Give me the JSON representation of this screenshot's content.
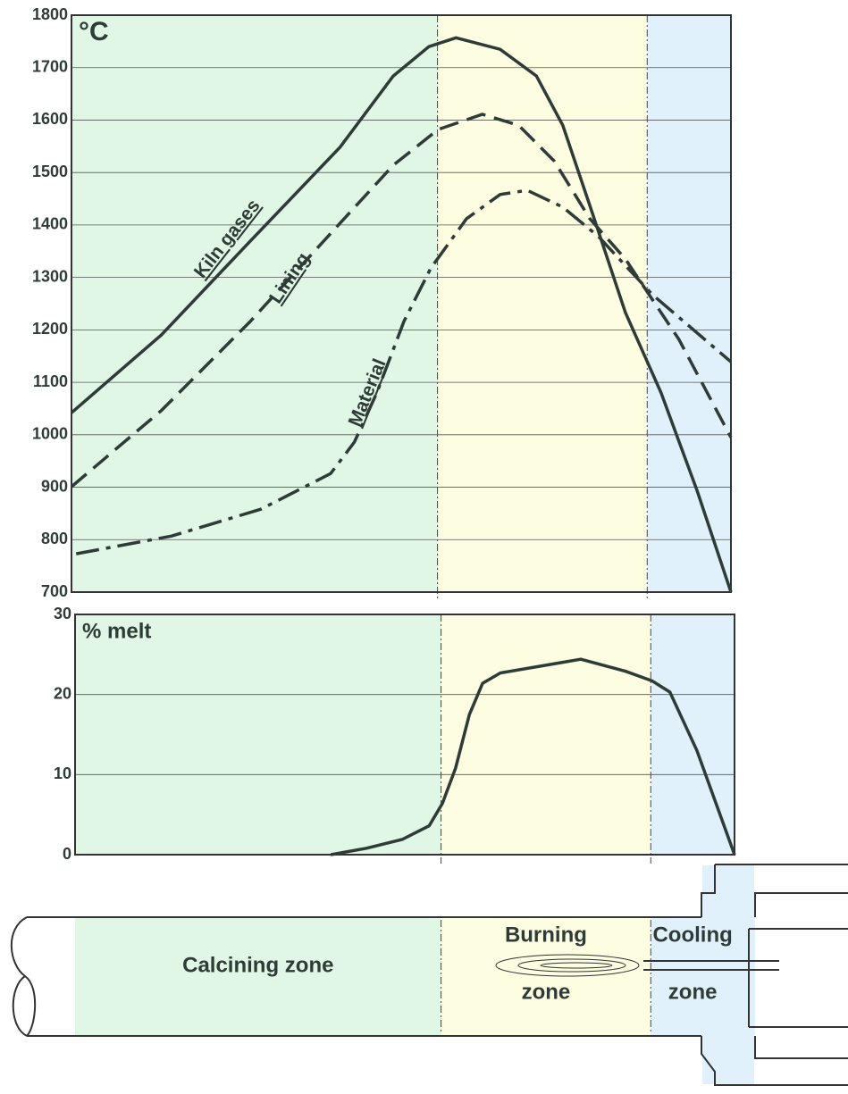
{
  "zones": [
    {
      "label": [
        "Calcining zone"
      ],
      "start": 0,
      "end": 55.5,
      "color": "#e0f7e6"
    },
    {
      "label": [
        "Burning",
        "zone"
      ],
      "start": 55.5,
      "end": 87.3,
      "color": "#fdfde2"
    },
    {
      "label": [
        "Cooling",
        "zone"
      ],
      "start": 87.3,
      "end": 100,
      "color": "#e1f1fb"
    }
  ],
  "chart_data": [
    {
      "type": "line",
      "axis_label": "°C",
      "xlim": [
        0,
        100
      ],
      "ylim": [
        700,
        1800
      ],
      "yticks": [
        700,
        800,
        900,
        1000,
        1100,
        1200,
        1300,
        1400,
        1500,
        1600,
        1700,
        1800
      ],
      "grid": true,
      "series": [
        {
          "name": "Kiln gases",
          "color": "#2f3b36",
          "linestyle": "solid",
          "x": [
            0,
            13.6,
            27.1,
            40.7,
            48.8,
            54.2,
            58.3,
            65.0,
            70.5,
            74.5,
            78.6,
            84.0,
            89.4,
            94.9,
            100
          ],
          "values": [
            1042,
            1190,
            1369,
            1548,
            1684,
            1740,
            1757,
            1735,
            1684,
            1590,
            1437,
            1233,
            1080,
            892,
            700
          ]
        },
        {
          "name": "Lining",
          "color": "#2f3b36",
          "linestyle": "dashed",
          "x": [
            0,
            13.6,
            27.1,
            40.7,
            48.8,
            55.6,
            62.3,
            67.8,
            73.2,
            78.6,
            84.0,
            92.1,
            100
          ],
          "values": [
            901,
            1046,
            1216,
            1403,
            1514,
            1582,
            1611,
            1590,
            1522,
            1412,
            1335,
            1182,
            995
          ]
        },
        {
          "name": "Material",
          "color": "#2f3b36",
          "linestyle": "dashdot",
          "x": [
            0.7,
            15.2,
            28.7,
            39.3,
            42.9,
            46.3,
            50.4,
            54.5,
            59.9,
            65.0,
            69.1,
            74.5,
            79.9,
            88.1,
            100
          ],
          "values": [
            773,
            807,
            858,
            926,
            986,
            1080,
            1216,
            1318,
            1412,
            1458,
            1466,
            1434,
            1378,
            1267,
            1139
          ]
        }
      ]
    },
    {
      "type": "line",
      "axis_label": "% melt",
      "xlim": [
        0,
        100
      ],
      "ylim": [
        0,
        30
      ],
      "yticks": [
        0,
        10,
        20,
        30
      ],
      "grid": true,
      "series": [
        {
          "name": "% melt",
          "color": "#2f3b36",
          "linestyle": "solid",
          "x": [
            38.8,
            44.2,
            49.6,
            53.7,
            55.7,
            57.7,
            59.8,
            61.8,
            64.5,
            76.7,
            83.5,
            87.5,
            90.2,
            94.3,
            100
          ],
          "values": [
            0,
            0.8,
            1.9,
            3.6,
            6.4,
            10.8,
            17.5,
            21.4,
            22.7,
            24.4,
            22.9,
            21.7,
            20.3,
            13.0,
            0
          ]
        }
      ]
    }
  ]
}
